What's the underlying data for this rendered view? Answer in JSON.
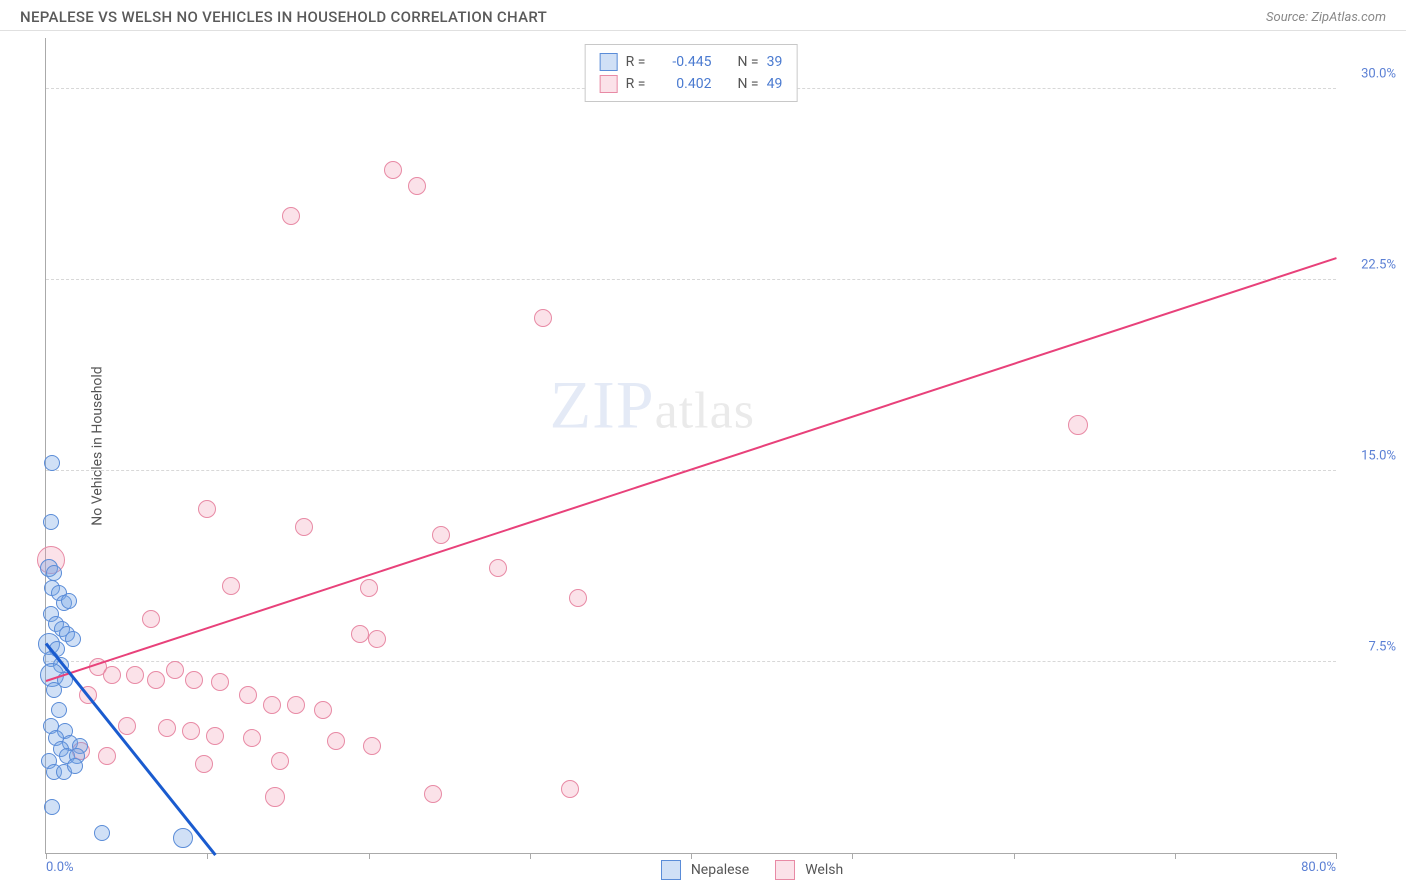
{
  "header": {
    "title": "NEPALESE VS WELSH NO VEHICLES IN HOUSEHOLD CORRELATION CHART",
    "source_prefix": "Source: ",
    "source": "ZipAtlas.com"
  },
  "chart": {
    "type": "scatter",
    "y_axis_title": "No Vehicles in Household",
    "xlim": [
      0,
      80
    ],
    "ylim": [
      0,
      32
    ],
    "x_ticks": [
      0,
      10,
      20,
      30,
      40,
      50,
      60,
      70,
      80
    ],
    "y_gridlines": [
      7.5,
      15.0,
      22.5,
      30.0
    ],
    "y_labels": [
      {
        "val": 7.5,
        "text": "7.5%"
      },
      {
        "val": 15.0,
        "text": "15.0%"
      },
      {
        "val": 22.5,
        "text": "22.5%"
      },
      {
        "val": 30.0,
        "text": "30.0%"
      }
    ],
    "x_label_left": {
      "val": 0,
      "text": "0.0%"
    },
    "x_label_right": {
      "val": 80,
      "text": "80.0%"
    },
    "background_color": "#ffffff",
    "grid_color": "#d8d8d8",
    "axis_color": "#aaaaaa",
    "series": {
      "nepalese": {
        "label": "Nepalese",
        "swatch_fill": "rgba(120,165,230,0.35)",
        "swatch_border": "#5a8cd8",
        "point_radius": 8,
        "trend_color": "#1a5bcf",
        "trend_width": 3,
        "trend": {
          "x1": 0,
          "y1": 8.3,
          "x2": 10.5,
          "y2": 0
        },
        "points": [
          {
            "x": 0.4,
            "y": 15.3,
            "r": 8
          },
          {
            "x": 0.3,
            "y": 13.0,
            "r": 8
          },
          {
            "x": 0.2,
            "y": 11.2,
            "r": 9
          },
          {
            "x": 0.5,
            "y": 11.0,
            "r": 8
          },
          {
            "x": 0.4,
            "y": 10.4,
            "r": 8
          },
          {
            "x": 0.8,
            "y": 10.2,
            "r": 8
          },
          {
            "x": 1.1,
            "y": 9.8,
            "r": 8
          },
          {
            "x": 1.4,
            "y": 9.9,
            "r": 8
          },
          {
            "x": 0.3,
            "y": 9.4,
            "r": 8
          },
          {
            "x": 0.6,
            "y": 9.0,
            "r": 8
          },
          {
            "x": 1.0,
            "y": 8.8,
            "r": 8
          },
          {
            "x": 1.3,
            "y": 8.6,
            "r": 8
          },
          {
            "x": 1.7,
            "y": 8.4,
            "r": 8
          },
          {
            "x": 0.2,
            "y": 8.2,
            "r": 11
          },
          {
            "x": 0.7,
            "y": 8.0,
            "r": 8
          },
          {
            "x": 0.3,
            "y": 7.6,
            "r": 8
          },
          {
            "x": 0.9,
            "y": 7.4,
            "r": 8
          },
          {
            "x": 0.4,
            "y": 7.0,
            "r": 12
          },
          {
            "x": 1.2,
            "y": 6.8,
            "r": 8
          },
          {
            "x": 0.5,
            "y": 6.4,
            "r": 8
          },
          {
            "x": 0.8,
            "y": 5.6,
            "r": 8
          },
          {
            "x": 0.3,
            "y": 5.0,
            "r": 8
          },
          {
            "x": 1.2,
            "y": 4.8,
            "r": 8
          },
          {
            "x": 0.6,
            "y": 4.5,
            "r": 8
          },
          {
            "x": 1.5,
            "y": 4.3,
            "r": 8
          },
          {
            "x": 2.1,
            "y": 4.2,
            "r": 8
          },
          {
            "x": 0.9,
            "y": 4.1,
            "r": 8
          },
          {
            "x": 1.3,
            "y": 3.8,
            "r": 8
          },
          {
            "x": 1.9,
            "y": 3.8,
            "r": 8
          },
          {
            "x": 0.2,
            "y": 3.6,
            "r": 8
          },
          {
            "x": 0.5,
            "y": 3.2,
            "r": 8
          },
          {
            "x": 1.1,
            "y": 3.2,
            "r": 8
          },
          {
            "x": 1.8,
            "y": 3.4,
            "r": 8
          },
          {
            "x": 0.4,
            "y": 1.8,
            "r": 8
          },
          {
            "x": 3.5,
            "y": 0.8,
            "r": 8
          },
          {
            "x": 8.5,
            "y": 0.6,
            "r": 10
          }
        ]
      },
      "welsh": {
        "label": "Welsh",
        "swatch_fill": "rgba(240,150,175,0.28)",
        "swatch_border": "#e88aa5",
        "point_radius": 8,
        "trend_color": "#e8417a",
        "trend_width": 2,
        "trend": {
          "x1": 0,
          "y1": 6.8,
          "x2": 80,
          "y2": 23.4
        },
        "points": [
          {
            "x": 0.3,
            "y": 11.5,
            "r": 14
          },
          {
            "x": 21.5,
            "y": 26.8,
            "r": 9
          },
          {
            "x": 23.0,
            "y": 26.2,
            "r": 9
          },
          {
            "x": 15.2,
            "y": 25.0,
            "r": 9
          },
          {
            "x": 30.8,
            "y": 21.0,
            "r": 9
          },
          {
            "x": 64.0,
            "y": 16.8,
            "r": 10
          },
          {
            "x": 10.0,
            "y": 13.5,
            "r": 9
          },
          {
            "x": 16.0,
            "y": 12.8,
            "r": 9
          },
          {
            "x": 24.5,
            "y": 12.5,
            "r": 9
          },
          {
            "x": 28.0,
            "y": 11.2,
            "r": 9
          },
          {
            "x": 11.5,
            "y": 10.5,
            "r": 9
          },
          {
            "x": 20.0,
            "y": 10.4,
            "r": 9
          },
          {
            "x": 33.0,
            "y": 10.0,
            "r": 9
          },
          {
            "x": 6.5,
            "y": 9.2,
            "r": 9
          },
          {
            "x": 19.5,
            "y": 8.6,
            "r": 9
          },
          {
            "x": 20.5,
            "y": 8.4,
            "r": 9
          },
          {
            "x": 8.0,
            "y": 7.2,
            "r": 9
          },
          {
            "x": 3.2,
            "y": 7.3,
            "r": 9
          },
          {
            "x": 4.1,
            "y": 7.0,
            "r": 9
          },
          {
            "x": 5.5,
            "y": 7.0,
            "r": 9
          },
          {
            "x": 6.8,
            "y": 6.8,
            "r": 9
          },
          {
            "x": 9.2,
            "y": 6.8,
            "r": 9
          },
          {
            "x": 10.8,
            "y": 6.7,
            "r": 9
          },
          {
            "x": 12.5,
            "y": 6.2,
            "r": 9
          },
          {
            "x": 2.6,
            "y": 6.2,
            "r": 9
          },
          {
            "x": 14.0,
            "y": 5.8,
            "r": 9
          },
          {
            "x": 15.5,
            "y": 5.8,
            "r": 9
          },
          {
            "x": 17.2,
            "y": 5.6,
            "r": 9
          },
          {
            "x": 5.0,
            "y": 5.0,
            "r": 9
          },
          {
            "x": 7.5,
            "y": 4.9,
            "r": 9
          },
          {
            "x": 9.0,
            "y": 4.8,
            "r": 9
          },
          {
            "x": 10.5,
            "y": 4.6,
            "r": 9
          },
          {
            "x": 12.8,
            "y": 4.5,
            "r": 9
          },
          {
            "x": 18.0,
            "y": 4.4,
            "r": 9
          },
          {
            "x": 20.2,
            "y": 4.2,
            "r": 9
          },
          {
            "x": 14.5,
            "y": 3.6,
            "r": 9
          },
          {
            "x": 9.8,
            "y": 3.5,
            "r": 9
          },
          {
            "x": 3.8,
            "y": 3.8,
            "r": 9
          },
          {
            "x": 2.2,
            "y": 4.0,
            "r": 9
          },
          {
            "x": 24.0,
            "y": 2.3,
            "r": 9
          },
          {
            "x": 32.5,
            "y": 2.5,
            "r": 9
          },
          {
            "x": 14.2,
            "y": 2.2,
            "r": 10
          }
        ]
      }
    },
    "legend_top": {
      "rows": [
        {
          "swatch_fill": "rgba(120,165,230,0.35)",
          "swatch_border": "#5a8cd8",
          "r_label": "R =",
          "r_val": "-0.445",
          "n_label": "N =",
          "n_val": "39"
        },
        {
          "swatch_fill": "rgba(240,150,175,0.28)",
          "swatch_border": "#e88aa5",
          "r_label": "R =",
          "r_val": " 0.402",
          "n_label": "N =",
          "n_val": "49"
        }
      ]
    },
    "legend_bottom": [
      {
        "swatch_fill": "rgba(120,165,230,0.35)",
        "swatch_border": "#5a8cd8",
        "label": "Nepalese"
      },
      {
        "swatch_fill": "rgba(240,150,175,0.28)",
        "swatch_border": "#e88aa5",
        "label": "Welsh"
      }
    ],
    "watermark": {
      "zip": "ZIP",
      "atlas": "atlas"
    }
  }
}
